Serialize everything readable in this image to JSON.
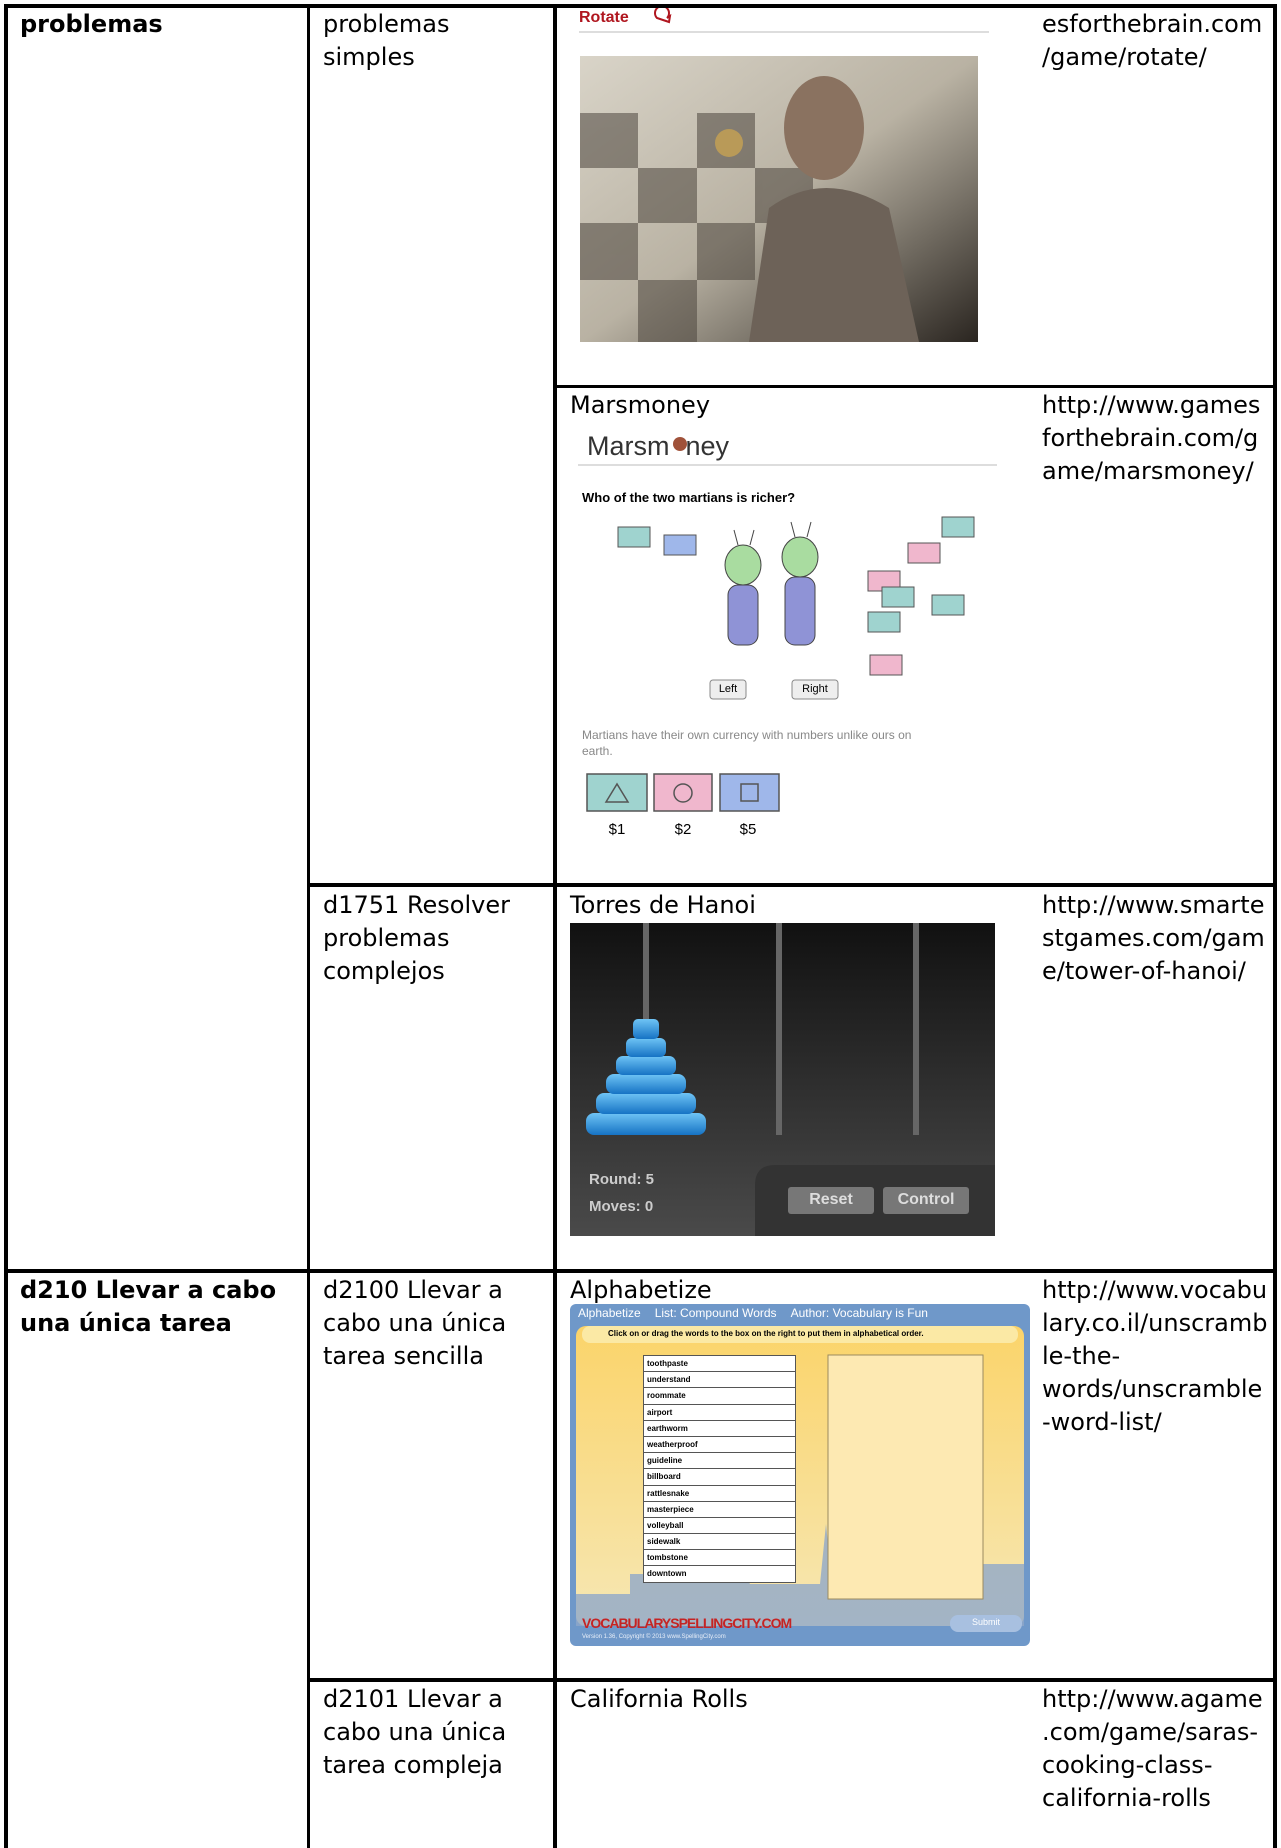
{
  "table": {
    "rows": [
      {
        "domain": "problemas",
        "subdomain": "problemas simples",
        "screenshot": {
          "label": "Rotate"
        },
        "url": "esforthebrain.com/game/rotate/"
      },
      {
        "title": "Marsmoney",
        "screenshot": {
          "logo_start": "Marsm",
          "logo_end": "ney",
          "question": "Who of the two martians is richer?",
          "buttons": [
            "Left",
            "Right"
          ],
          "note": "Martians have their own currency with numbers unlike ours on earth.",
          "prices": [
            "$1",
            "$2",
            "$5"
          ]
        },
        "url": "http://www.gamesforthebrain.com/game/marsmoney/"
      },
      {
        "subdomain": "d1751 Resolver problemas complejos",
        "title": "Torres de Hanoi",
        "screenshot": {
          "round": "Round: 5",
          "moves": "Moves: 0",
          "buttons": [
            "Reset",
            "Control"
          ]
        },
        "url": "http://www.smartestgames.com/game/tower-of-hanoi/"
      },
      {
        "domain": "d210 Llevar a cabo una única tarea",
        "subdomain": "d2100 Llevar a cabo una única tarea sencilla",
        "title": "Alphabetize",
        "screenshot": {
          "header": "Alphabetize",
          "list": "List: Compound Words",
          "author": "Author: Vocabulary is Fun",
          "instruction": "Click on or drag the words to the box on the right to put them in alphabetical order.",
          "words": [
            "toothpaste",
            "understand",
            "roommate",
            "airport",
            "earthworm",
            "weatherproof",
            "guideline",
            "billboard",
            "rattlesnake",
            "masterpiece",
            "volleyball",
            "sidewalk",
            "tombstone",
            "downtown"
          ],
          "brand": "VOCABULARYSPELLINGCITY.COM",
          "version": "Version 1.36, Copyright © 2013 www.SpellingCity.com",
          "submit": "Submit"
        },
        "url": "http://www.vocabulary.co.il/unscramble-the-words/unscramble-word-list/"
      },
      {
        "subdomain": "d2101 Llevar a cabo una única tarea compleja",
        "title": "California Rolls",
        "url": "http://www.agame.com/game/saras-cooking-class-california-rolls"
      }
    ]
  }
}
